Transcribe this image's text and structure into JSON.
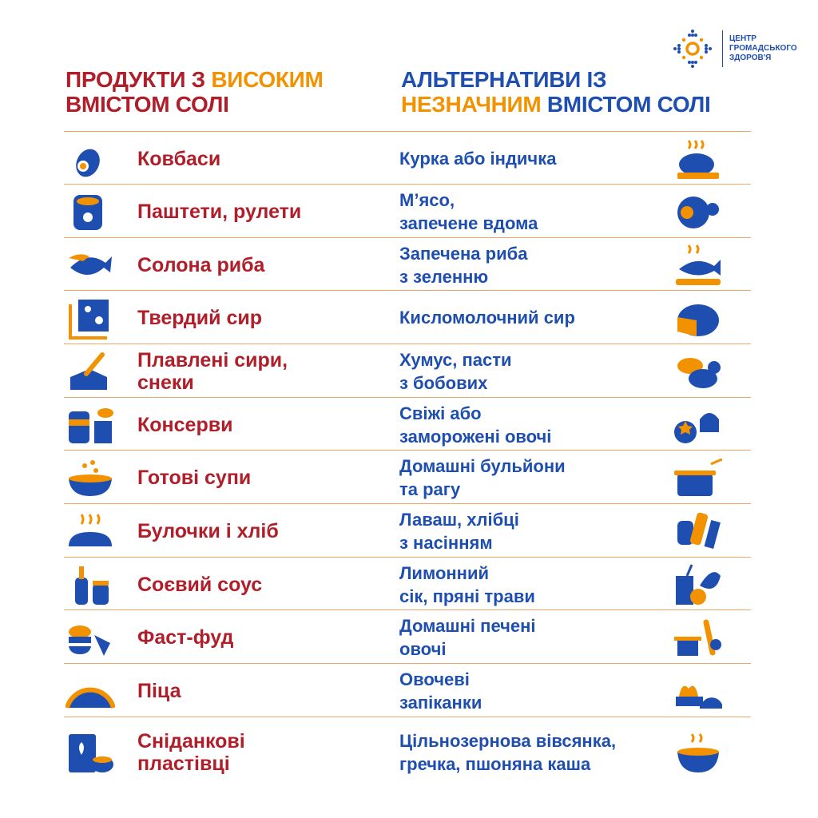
{
  "logo": {
    "line1": "ЦЕНТР",
    "line2": "ГРОМАДСЬКОГО",
    "line3": "ЗДОРОВ'Я"
  },
  "colors": {
    "red": "#b01e2a",
    "orange": "#f39200",
    "blue": "#1e4fb0",
    "divider": "#f0a66b"
  },
  "header_left": {
    "part1": "ПРОДУКТИ З ",
    "part2_orange": "ВИСОКИМ",
    "part3": "ВМІСТОМ СОЛІ"
  },
  "header_right": {
    "part1": "АЛЬТЕРНАТИВИ ІЗ",
    "part2_orange": "НЕЗНАЧНИМ",
    "part3": " ВМІСТОМ СОЛІ"
  },
  "rows": [
    {
      "high": "Ковбаси",
      "low": "Курка або індичка",
      "high_icon": "sausage-icon",
      "low_icon": "roast-chicken-icon"
    },
    {
      "high": "Паштети, рулети",
      "low": "М’ясо,\nзапечене вдома",
      "high_icon": "can-icon",
      "low_icon": "baked-meat-icon"
    },
    {
      "high": "Солона риба",
      "low": "Запечена риба\nз зеленню",
      "high_icon": "fish-icon",
      "low_icon": "baked-fish-icon"
    },
    {
      "high": "Твердий сир",
      "low": "Кисломолочний сир",
      "high_icon": "hard-cheese-icon",
      "low_icon": "cheese-wheel-icon"
    },
    {
      "high": "Плавлені сири,\nснеки",
      "low": "Хумус, пасти\nз бобових",
      "high_icon": "processed-cheese-icon",
      "low_icon": "beans-icon"
    },
    {
      "high": "Консерви",
      "low": "Свіжі або\nзаморожені овочі",
      "high_icon": "preserves-icon",
      "low_icon": "vegetables-icon"
    },
    {
      "high": "Готові супи",
      "low": "Домашні бульйони\nта рагу",
      "high_icon": "soup-bowl-icon",
      "low_icon": "pot-icon"
    },
    {
      "high": "Булочки і хліб",
      "low": "Лаваш, хлібці\nз насінням",
      "high_icon": "bread-icon",
      "low_icon": "crispbread-icon"
    },
    {
      "high": "Соєвий соус",
      "low": "Лимонний\nсік, пряні трави",
      "high_icon": "sauce-bottle-icon",
      "low_icon": "lemon-herbs-icon"
    },
    {
      "high": "Фаст-фуд",
      "low": "Домашні печені\nовочі",
      "high_icon": "burger-icon",
      "low_icon": "roasted-vegetables-icon"
    },
    {
      "high": "Піца",
      "low": "Овочеві\nзапіканки",
      "high_icon": "pizza-icon",
      "low_icon": "casserole-icon"
    },
    {
      "high": "Сніданкові\nпластівці",
      "low": "Цільнозернова вівсянка,\nгречка, пшоняна каша",
      "high_icon": "cereal-box-icon",
      "low_icon": "porridge-icon"
    }
  ]
}
